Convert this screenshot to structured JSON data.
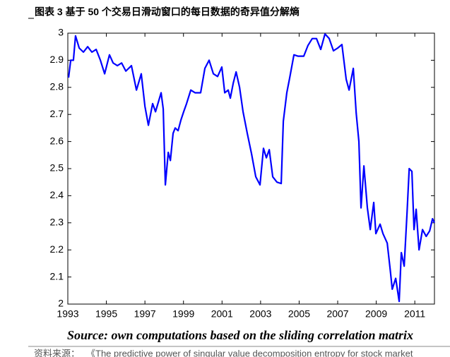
{
  "chart_data": {
    "type": "line",
    "title": "图表 3 基于 50 个交易日滑动窗口的每日数据的奇异值分解熵",
    "caption": "Source: own computations based on the sliding correlation matrix",
    "source_label": "资料来源：",
    "source_text": "《The predictive power of singular value decomposition entropy for stock market",
    "xlim": [
      1993,
      2012.02
    ],
    "ylim": [
      2,
      3
    ],
    "xticks": [
      1993,
      1995,
      1997,
      1999,
      2001,
      2003,
      2005,
      2007,
      2009,
      2011
    ],
    "yticks": [
      2,
      2.1,
      2.2,
      2.3,
      2.4,
      2.5,
      2.6,
      2.7,
      2.8,
      2.9,
      3
    ],
    "grid": false,
    "x": [
      1993.04,
      1993.15,
      1993.29,
      1993.4,
      1993.59,
      1993.81,
      1994.03,
      1994.25,
      1994.47,
      1994.69,
      1994.91,
      1995.16,
      1995.35,
      1995.57,
      1995.79,
      1996.01,
      1996.3,
      1996.56,
      1996.81,
      1997.0,
      1997.18,
      1997.4,
      1997.55,
      1997.84,
      1997.95,
      1998.06,
      1998.21,
      1998.32,
      1998.46,
      1998.57,
      1998.72,
      1998.87,
      1999.01,
      1999.16,
      1999.38,
      1999.6,
      1999.89,
      2000.11,
      2000.33,
      2000.55,
      2000.77,
      2000.99,
      2001.14,
      2001.32,
      2001.43,
      2001.58,
      2001.73,
      2001.91,
      2002.09,
      2002.31,
      2002.53,
      2002.75,
      2002.97,
      2003.15,
      2003.3,
      2003.45,
      2003.63,
      2003.85,
      2004.07,
      2004.18,
      2004.36,
      2004.51,
      2004.73,
      2004.95,
      2005.24,
      2005.46,
      2005.68,
      2005.9,
      2006.12,
      2006.34,
      2006.56,
      2006.78,
      2007.0,
      2007.22,
      2007.44,
      2007.59,
      2007.81,
      2007.96,
      2008.1,
      2008.21,
      2008.36,
      2008.54,
      2008.69,
      2008.87,
      2008.98,
      2009.2,
      2009.35,
      2009.57,
      2009.72,
      2009.83,
      2010.01,
      2010.19,
      2010.3,
      2010.45,
      2010.6,
      2010.71,
      2010.85,
      2010.96,
      2011.07,
      2011.22,
      2011.4,
      2011.59,
      2011.77,
      2011.92,
      2012.02
    ],
    "series": [
      {
        "color": "#0000ff",
        "values": [
          2.836,
          2.9,
          2.9,
          2.99,
          2.945,
          2.93,
          2.95,
          2.93,
          2.94,
          2.9,
          2.85,
          2.92,
          2.89,
          2.88,
          2.89,
          2.86,
          2.88,
          2.79,
          2.85,
          2.73,
          2.66,
          2.74,
          2.71,
          2.78,
          2.72,
          2.44,
          2.56,
          2.53,
          2.63,
          2.65,
          2.64,
          2.68,
          2.71,
          2.74,
          2.79,
          2.78,
          2.78,
          2.87,
          2.9,
          2.85,
          2.84,
          2.875,
          2.78,
          2.79,
          2.76,
          2.815,
          2.857,
          2.8,
          2.71,
          2.63,
          2.555,
          2.47,
          2.44,
          2.575,
          2.54,
          2.57,
          2.47,
          2.45,
          2.445,
          2.675,
          2.78,
          2.835,
          2.92,
          2.915,
          2.915,
          2.955,
          2.98,
          2.98,
          2.94,
          2.997,
          2.98,
          2.935,
          2.945,
          2.958,
          2.83,
          2.79,
          2.87,
          2.705,
          2.6,
          2.355,
          2.51,
          2.355,
          2.275,
          2.375,
          2.26,
          2.295,
          2.26,
          2.225,
          2.13,
          2.055,
          2.095,
          2.01,
          2.19,
          2.14,
          2.34,
          2.5,
          2.49,
          2.275,
          2.35,
          2.2,
          2.275,
          2.25,
          2.27,
          2.315,
          2.3
        ]
      }
    ]
  }
}
